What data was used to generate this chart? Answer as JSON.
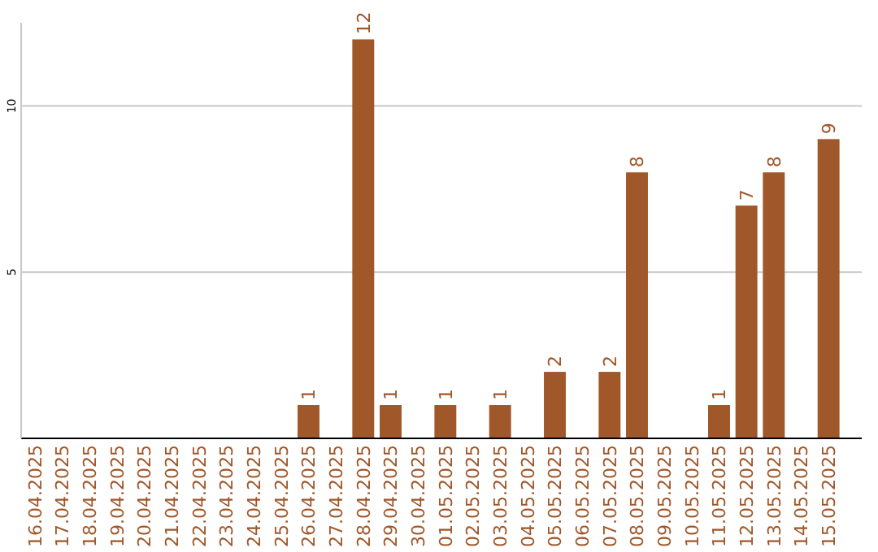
{
  "chart_data": {
    "type": "bar",
    "categories": [
      "16.04.2025",
      "17.04.2025",
      "18.04.2025",
      "19.04.2025",
      "20.04.2025",
      "21.04.2025",
      "22.04.2025",
      "23.04.2025",
      "24.04.2025",
      "25.04.2025",
      "26.04.2025",
      "27.04.2025",
      "28.04.2025",
      "29.04.2025",
      "30.04.2025",
      "01.05.2025",
      "02.05.2025",
      "03.05.2025",
      "04.05.2025",
      "05.05.2025",
      "06.05.2025",
      "07.05.2025",
      "08.05.2025",
      "09.05.2025",
      "10.05.2025",
      "11.05.2025",
      "12.05.2025",
      "13.05.2025",
      "14.05.2025",
      "15.05.2025"
    ],
    "values": [
      0,
      0,
      0,
      0,
      0,
      0,
      0,
      0,
      0,
      0,
      1,
      0,
      12,
      1,
      0,
      1,
      0,
      1,
      0,
      2,
      0,
      2,
      8,
      0,
      0,
      1,
      7,
      8,
      0,
      9
    ],
    "value_labels": [
      null,
      null,
      null,
      null,
      null,
      null,
      null,
      null,
      null,
      null,
      "1",
      null,
      "12",
      "1",
      null,
      "1",
      null,
      "1",
      null,
      "2",
      null,
      "2",
      "8",
      null,
      null,
      "1",
      "7",
      "8",
      null,
      "9"
    ],
    "color": "#a0572a",
    "ylim": [
      0,
      12.5
    ],
    "yticks": [
      5,
      10
    ],
    "grid": "y"
  }
}
